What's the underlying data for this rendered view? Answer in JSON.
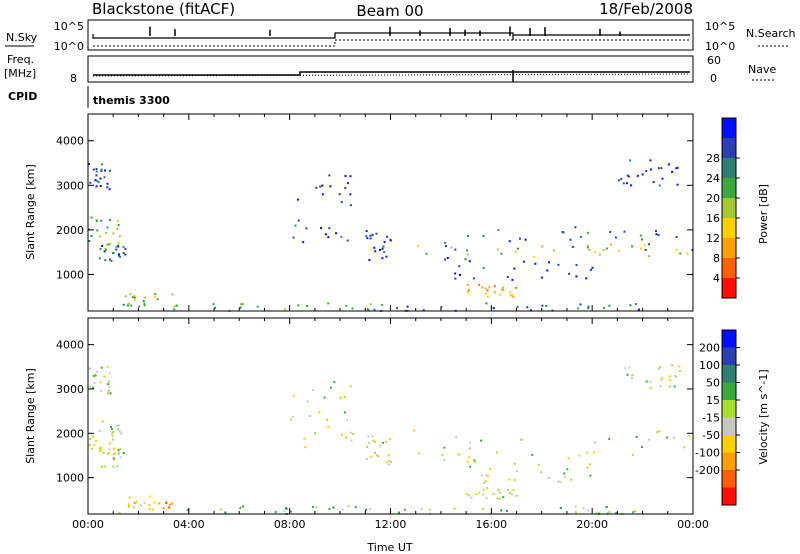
{
  "header": {
    "station": "Blackstone (fitACF)",
    "beam": "Beam 00",
    "date": "18/Feb/2008"
  },
  "panels": {
    "nsky_label": "N.Sky",
    "nsky_tick_hi": "10^5",
    "nsky_tick_lo": "10^0",
    "nsearch_label": "N.Search",
    "freq_label": "Freq.",
    "freq_unit": "[MHz]",
    "freq_tick_hi": "8",
    "nave_label": "Nave",
    "nave_tick_hi": "60",
    "nave_tick_lo": "0",
    "cpid_label": "CPID",
    "cpid_text": "themis 3300"
  },
  "chart_data": [
    {
      "type": "heatmap",
      "name": "power",
      "xlabel": "",
      "ylabel": "Slant Range [km]",
      "xlim": [
        0,
        24
      ],
      "ylim": [
        180,
        4600
      ],
      "yticks": [
        1000,
        2000,
        3000,
        4000
      ],
      "colorbar_label": "Power [dB]",
      "colorbar_ticks": [
        "4",
        "8",
        "12",
        "16",
        "20",
        "24",
        "28"
      ],
      "colorbar_colors": [
        "#0010ff",
        "#2a3fb0",
        "#2f7f73",
        "#3aa83a",
        "#a8c830",
        "#ffd000",
        "#ffa000",
        "#ff6000",
        "#ff1000"
      ],
      "regions": [
        {
          "t": [
            0.0,
            0.9
          ],
          "r": [
            2900,
            3550
          ],
          "level": 1
        },
        {
          "t": [
            0.0,
            1.3
          ],
          "r": [
            1600,
            2300
          ],
          "level": 4
        },
        {
          "t": [
            0.4,
            1.5
          ],
          "r": [
            1250,
            1700
          ],
          "level": 2
        },
        {
          "t": [
            1.3,
            3.5
          ],
          "r": [
            300,
            600
          ],
          "level": 4
        },
        {
          "t": [
            1.0,
            12.5
          ],
          "r": [
            200,
            380
          ],
          "level": 3
        },
        {
          "t": [
            8.0,
            10.5
          ],
          "r": [
            1700,
            3300
          ],
          "level": 1
        },
        {
          "t": [
            11.0,
            12.0
          ],
          "r": [
            1300,
            2000
          ],
          "level": 1
        },
        {
          "t": [
            12.8,
            24.0
          ],
          "r": [
            1550,
            2100
          ],
          "level": 2
        },
        {
          "t": [
            12.8,
            24.0
          ],
          "r": [
            1400,
            1700
          ],
          "level": 5
        },
        {
          "t": [
            14.0,
            20.0
          ],
          "r": [
            900,
            1400
          ],
          "level": 1
        },
        {
          "t": [
            15.0,
            17.0
          ],
          "r": [
            500,
            800
          ],
          "level": 6
        },
        {
          "t": [
            21.0,
            23.5
          ],
          "r": [
            3000,
            3600
          ],
          "level": 1
        },
        {
          "t": [
            12.5,
            22.0
          ],
          "r": [
            200,
            380
          ],
          "level": 2
        }
      ]
    },
    {
      "type": "heatmap",
      "name": "velocity",
      "xlabel": "Time UT",
      "ylabel": "Slant Range [km]",
      "xlim": [
        0,
        24
      ],
      "ylim": [
        180,
        4600
      ],
      "xticks": [
        "00:00",
        "04:00",
        "08:00",
        "12:00",
        "16:00",
        "20:00",
        "00:00"
      ],
      "yticks": [
        1000,
        2000,
        3000,
        4000
      ],
      "colorbar_label": "Velocity [m s^-1]",
      "colorbar_ticks": [
        "200",
        "100",
        "50",
        "15",
        "-15",
        "-50",
        "-100",
        "-200"
      ],
      "colorbar_colors": [
        "#0010ff",
        "#2a3fb0",
        "#2f7f73",
        "#3aa83a",
        "#a8e030",
        "#c8c8c0",
        "#ffd000",
        "#ffa000",
        "#ff6000",
        "#ff1000"
      ],
      "regions": [
        {
          "t": [
            0.0,
            0.9
          ],
          "r": [
            2900,
            3550
          ],
          "level": 5
        },
        {
          "t": [
            0.0,
            1.3
          ],
          "r": [
            1600,
            2300
          ],
          "level": 5
        },
        {
          "t": [
            0.4,
            1.5
          ],
          "r": [
            1250,
            1700
          ],
          "level": 5
        },
        {
          "t": [
            1.3,
            3.5
          ],
          "r": [
            300,
            600
          ],
          "level": 7
        },
        {
          "t": [
            1.0,
            12.5
          ],
          "r": [
            200,
            380
          ],
          "level": 4
        },
        {
          "t": [
            8.0,
            10.5
          ],
          "r": [
            1700,
            3300
          ],
          "level": 5
        },
        {
          "t": [
            11.0,
            12.0
          ],
          "r": [
            1300,
            2000
          ],
          "level": 5
        },
        {
          "t": [
            12.8,
            24.0
          ],
          "r": [
            1400,
            2100
          ],
          "level": 5
        },
        {
          "t": [
            14.0,
            20.0
          ],
          "r": [
            900,
            1400
          ],
          "level": 5
        },
        {
          "t": [
            15.0,
            17.0
          ],
          "r": [
            500,
            800
          ],
          "level": 5
        },
        {
          "t": [
            21.0,
            23.5
          ],
          "r": [
            3000,
            3600
          ],
          "level": 5
        },
        {
          "t": [
            12.5,
            22.0
          ],
          "r": [
            200,
            380
          ],
          "level": 4
        }
      ]
    }
  ]
}
